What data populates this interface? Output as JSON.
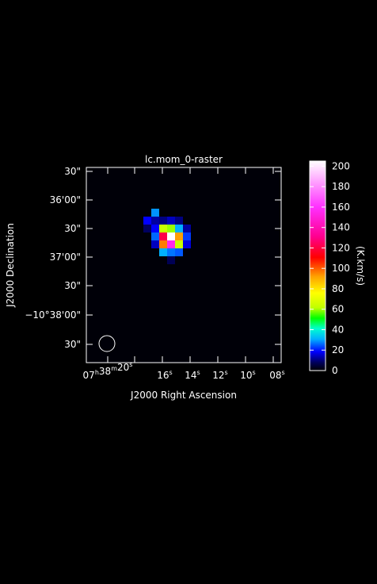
{
  "chart_data": {
    "type": "heatmap",
    "title": "lc.mom_0-raster",
    "xlabel": "J2000 Right Ascension",
    "ylabel": "J2000 Declination",
    "colorbar_label": "(K.km/s)",
    "colorbar_range": [
      0,
      205
    ],
    "colorbar_ticks": [
      "0",
      "20",
      "40",
      "60",
      "80",
      "100",
      "120",
      "140",
      "160",
      "180",
      "200"
    ],
    "xtick_labels": [
      {
        "h": "07",
        "m": "38",
        "s": "20",
        "sup": "h",
        "sup_m": "m",
        "sup_s": "s"
      },
      {
        "s": "16",
        "sup_s": "s"
      },
      {
        "s": "14",
        "sup_s": "s"
      },
      {
        "s": "12",
        "sup_s": "s"
      },
      {
        "s": "10",
        "sup_s": "s"
      },
      {
        "s": "08",
        "sup_s": "s"
      }
    ],
    "ytick_labels": [
      "30\"",
      "36'00\"",
      "30\"",
      "37'00\"",
      "30\"",
      "−10°38'00\"",
      "30\""
    ],
    "grid": false,
    "beam": "circle-bottom-left",
    "peak_value": 205,
    "pixels": [
      {
        "col": 8,
        "row": 5,
        "v": 28
      },
      {
        "col": 7,
        "row": 6,
        "v": 18
      },
      {
        "col": 8,
        "row": 6,
        "v": 12
      },
      {
        "col": 9,
        "row": 6,
        "v": 10
      },
      {
        "col": 10,
        "row": 6,
        "v": 14
      },
      {
        "col": 11,
        "row": 6,
        "v": 10
      },
      {
        "col": 7,
        "row": 7,
        "v": 8
      },
      {
        "col": 8,
        "row": 7,
        "v": 18
      },
      {
        "col": 9,
        "row": 7,
        "v": 62
      },
      {
        "col": 10,
        "row": 7,
        "v": 58
      },
      {
        "col": 11,
        "row": 7,
        "v": 30
      },
      {
        "col": 12,
        "row": 7,
        "v": 12
      },
      {
        "col": 8,
        "row": 8,
        "v": 25
      },
      {
        "col": 9,
        "row": 8,
        "v": 120
      },
      {
        "col": 10,
        "row": 8,
        "v": 205
      },
      {
        "col": 11,
        "row": 8,
        "v": 92
      },
      {
        "col": 12,
        "row": 8,
        "v": 22
      },
      {
        "col": 8,
        "row": 9,
        "v": 14
      },
      {
        "col": 9,
        "row": 9,
        "v": 96
      },
      {
        "col": 10,
        "row": 9,
        "v": 155
      },
      {
        "col": 11,
        "row": 9,
        "v": 62
      },
      {
        "col": 12,
        "row": 9,
        "v": 16
      },
      {
        "col": 9,
        "row": 10,
        "v": 30
      },
      {
        "col": 10,
        "row": 10,
        "v": 26
      },
      {
        "col": 11,
        "row": 10,
        "v": 24
      },
      {
        "col": 10,
        "row": 11,
        "v": 7
      }
    ]
  }
}
